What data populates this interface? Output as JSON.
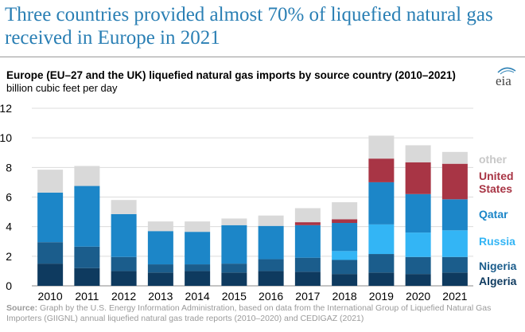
{
  "headline": "Three countries provided almost 70% of liquefied natural gas received in Europe in 2021",
  "logo_text": "eia",
  "source": {
    "label": "Source:",
    "text": " Graph by the U.S. Energy Information Administration, based on data from the International Group of Liquefied Natural Gas Importers (GIIGNL) annual liquefied natural gas trade reports (2010–2020) and CEDIGAZ (2021)"
  },
  "chart_data": {
    "type": "bar",
    "stacked": true,
    "title": "Europe (EU–27 and the UK) liquefied natural gas imports by source country (2010–2021)",
    "subtitle": "billion cubic feet per day",
    "categories": [
      "2010",
      "2011",
      "2012",
      "2013",
      "2014",
      "2015",
      "2016",
      "2017",
      "2018",
      "2019",
      "2020",
      "2021"
    ],
    "ylim": [
      0,
      12
    ],
    "yticks": [
      0,
      2,
      4,
      6,
      8,
      10,
      12
    ],
    "grid": true,
    "legend_placement": "right",
    "series": [
      {
        "name": "Algeria",
        "color": "#0e3a5f",
        "values": [
          1.5,
          1.2,
          1.0,
          0.9,
          1.0,
          0.9,
          1.0,
          0.95,
          0.8,
          0.9,
          0.8,
          0.9
        ]
      },
      {
        "name": "Nigeria",
        "color": "#1b5d8c",
        "values": [
          1.45,
          1.45,
          0.95,
          0.55,
          0.45,
          0.6,
          0.8,
          0.95,
          0.95,
          1.25,
          1.15,
          1.05
        ]
      },
      {
        "name": "Russia",
        "color": "#33b5f5",
        "values": [
          0,
          0,
          0,
          0,
          0,
          0,
          0,
          0,
          0.6,
          2.0,
          1.65,
          1.8
        ]
      },
      {
        "name": "Qatar",
        "color": "#1c86c8",
        "values": [
          3.35,
          4.1,
          2.9,
          2.25,
          2.2,
          2.6,
          2.25,
          2.2,
          1.9,
          2.85,
          2.6,
          2.1
        ]
      },
      {
        "name": "United States",
        "color": "#a83545",
        "values": [
          0,
          0,
          0,
          0,
          0,
          0,
          0,
          0.2,
          0.25,
          1.6,
          2.15,
          2.4
        ]
      },
      {
        "name": "other",
        "color": "#d9d9d9",
        "values": [
          1.55,
          1.35,
          0.95,
          0.65,
          0.7,
          0.45,
          0.7,
          0.95,
          1.15,
          1.55,
          1.15,
          0.8
        ]
      }
    ],
    "legend_colors": {
      "other": "#c8c8c8",
      "United States": "#a83545",
      "Qatar": "#1c86c8",
      "Russia": "#33b5f5",
      "Nigeria": "#1b5d8c",
      "Algeria": "#0e3a5f"
    }
  }
}
